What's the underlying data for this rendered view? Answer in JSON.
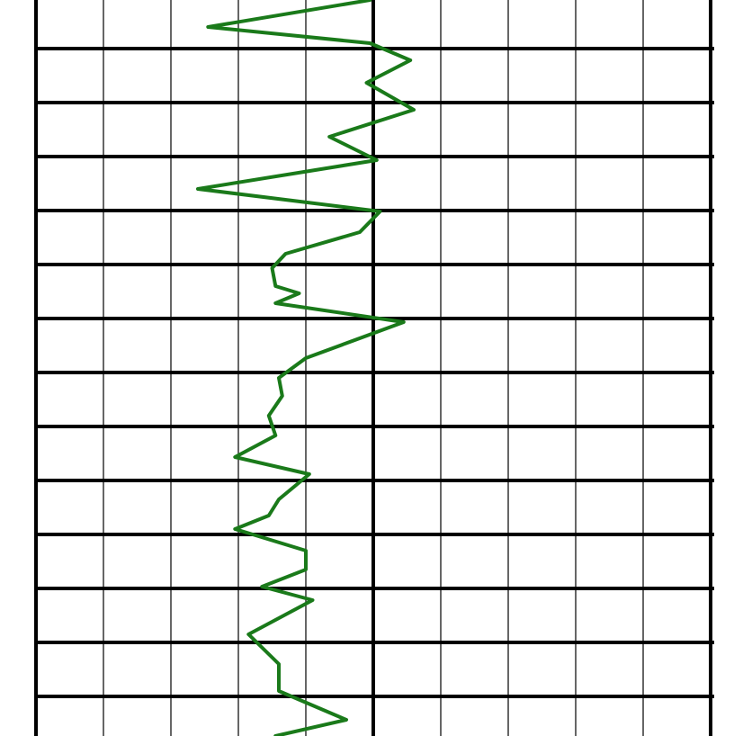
{
  "chart_data": {
    "type": "line",
    "orientation": "vertical-track",
    "title": "",
    "xlabel": "",
    "ylabel": "",
    "xlim": [
      -5,
      5
    ],
    "ylim": [
      0,
      818
    ],
    "grid": true,
    "major_vertical_at": [
      -5,
      0,
      5
    ],
    "horizontal_rows_every": 60,
    "series": [
      {
        "color": "#1a7a1a",
        "points": [
          [
            -0.05,
            0
          ],
          [
            -2.45,
            30
          ],
          [
            -0.05,
            48
          ],
          [
            0.55,
            67
          ],
          [
            -0.1,
            92
          ],
          [
            0.6,
            122
          ],
          [
            -0.65,
            152
          ],
          [
            0.05,
            178
          ],
          [
            -2.6,
            210
          ],
          [
            0.1,
            235
          ],
          [
            -0.2,
            258
          ],
          [
            -1.3,
            282
          ],
          [
            -1.5,
            298
          ],
          [
            -1.45,
            318
          ],
          [
            -1.1,
            326
          ],
          [
            -1.45,
            337
          ],
          [
            0.45,
            358
          ],
          [
            -1.0,
            398
          ],
          [
            -1.4,
            420
          ],
          [
            -1.35,
            440
          ],
          [
            -1.55,
            462
          ],
          [
            -1.45,
            484
          ],
          [
            -2.05,
            508
          ],
          [
            -0.95,
            527
          ],
          [
            -1.4,
            555
          ],
          [
            -1.55,
            573
          ],
          [
            -2.05,
            588
          ],
          [
            -1.0,
            612
          ],
          [
            -1.0,
            633
          ],
          [
            -1.65,
            652
          ],
          [
            -0.9,
            667
          ],
          [
            -1.85,
            705
          ],
          [
            -1.4,
            738
          ],
          [
            -1.4,
            768
          ],
          [
            -0.4,
            800
          ],
          [
            -1.45,
            818
          ]
        ]
      }
    ]
  }
}
